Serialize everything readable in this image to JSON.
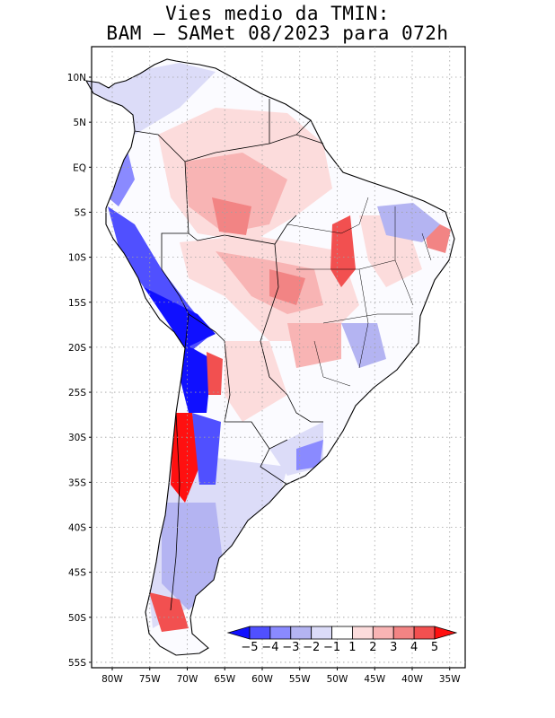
{
  "map": {
    "title_line1": "Vies medio da TMIN:",
    "title_line2": "BAM  –  SAMet 08/2023  para 072h",
    "lat_labels": [
      "10N",
      "5N",
      "EQ",
      "5S",
      "10S",
      "15S",
      "20S",
      "25S",
      "30S",
      "35S",
      "40S",
      "45S",
      "50S",
      "55S"
    ],
    "lon_labels": [
      "80W",
      "75W",
      "70W",
      "65W",
      "60W",
      "55W",
      "50W",
      "45W",
      "40W",
      "35W"
    ],
    "lat_values": [
      10,
      5,
      0,
      -5,
      -10,
      -15,
      -20,
      -25,
      -30,
      -35,
      -40,
      -45,
      -50,
      -55
    ],
    "lon_values": [
      -80,
      -75,
      -70,
      -65,
      -60,
      -55,
      -50,
      -45,
      -40,
      -35
    ],
    "colorbar": {
      "labels": [
        "−5",
        "−4",
        "−3",
        "−2",
        "−1",
        "1",
        "2",
        "3",
        "4",
        "5"
      ],
      "colors": [
        "#1010ff",
        "#5050ff",
        "#8a8aff",
        "#b4b4f2",
        "#dcdcf8",
        "#ffffff",
        "#fcdcdc",
        "#f8b4b4",
        "#f28484",
        "#f25050",
        "#ff1010"
      ]
    },
    "colors": {
      "land_outline": "#000000",
      "grid": "#a0a0a0"
    }
  }
}
